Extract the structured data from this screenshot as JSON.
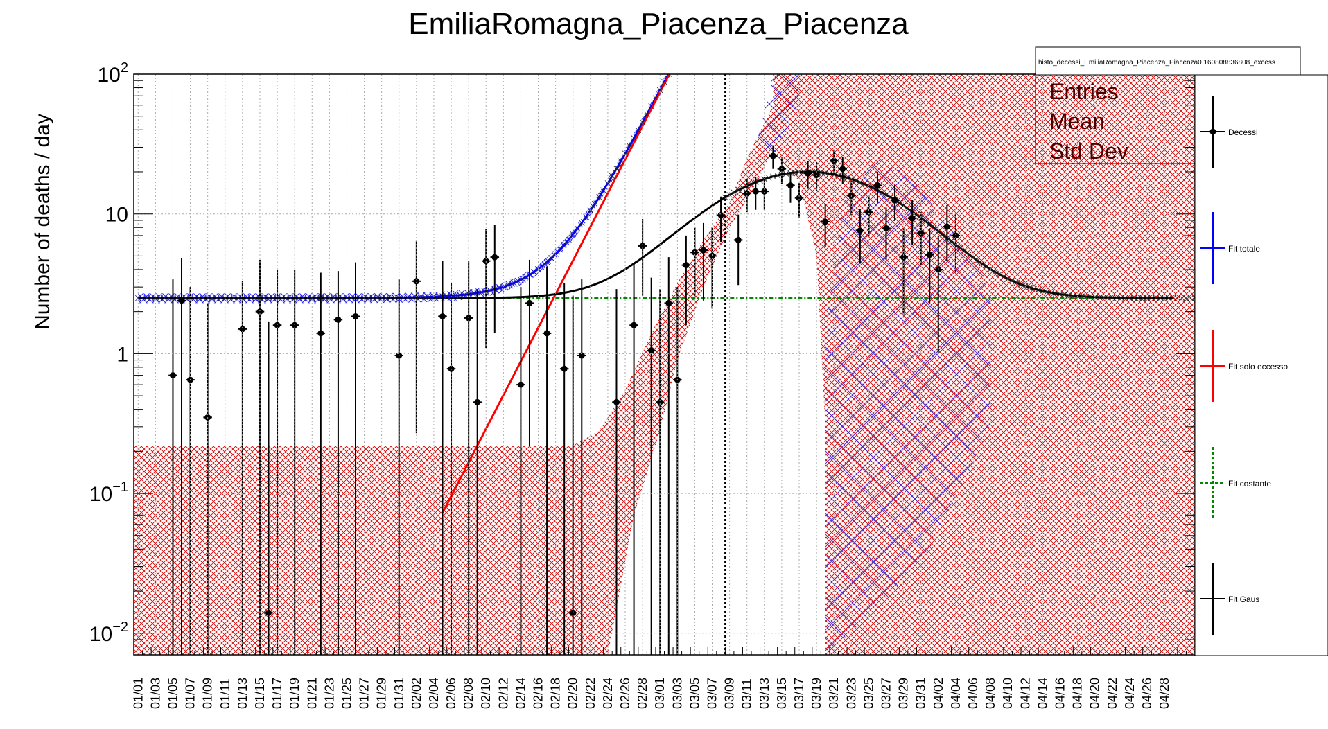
{
  "chart_data": {
    "type": "scatter",
    "title": "EmiliaRomagna_Piacenza_Piacenza",
    "xlabel": "",
    "ylabel": "Number of deaths / day",
    "yscale": "log",
    "ylim": [
      0.007,
      100
    ],
    "y_ticks": [
      {
        "value": 0.01,
        "base": "10",
        "exp": "−2"
      },
      {
        "value": 0.1,
        "base": "10",
        "exp": "−1"
      },
      {
        "value": 1,
        "base": "1",
        "exp": ""
      },
      {
        "value": 10,
        "base": "10",
        "exp": ""
      },
      {
        "value": 100,
        "base": "10",
        "exp": "2"
      }
    ],
    "x_ticks": [
      "01/01",
      "01/03",
      "01/05",
      "01/07",
      "01/09",
      "01/11",
      "01/13",
      "01/15",
      "01/17",
      "01/19",
      "01/21",
      "01/23",
      "01/25",
      "01/27",
      "01/29",
      "01/31",
      "02/02",
      "02/04",
      "02/06",
      "02/08",
      "02/10",
      "02/12",
      "02/14",
      "02/16",
      "02/18",
      "02/20",
      "02/22",
      "02/24",
      "02/26",
      "02/28",
      "03/01",
      "03/03",
      "03/05",
      "03/07",
      "03/09",
      "03/11",
      "03/13",
      "03/15",
      "03/17",
      "03/19",
      "03/21",
      "03/23",
      "03/25",
      "03/27",
      "03/29",
      "03/31",
      "04/02",
      "04/04",
      "04/06",
      "04/08",
      "04/10",
      "04/12",
      "04/14",
      "04/16",
      "04/18",
      "04/20",
      "04/22",
      "04/24",
      "04/26",
      "04/28"
    ],
    "marker_date": "03/08",
    "grid": true,
    "legend_placement": "right",
    "series": [
      {
        "name": "Decessi",
        "color": "#000000",
        "points": [
          {
            "x": "01/05",
            "y": 0.7,
            "lo": 0.007,
            "hi": 3.4
          },
          {
            "x": "01/06",
            "y": 2.4,
            "lo": 0.007,
            "hi": 4.8
          },
          {
            "x": "01/07",
            "y": 0.65,
            "lo": 0.007,
            "hi": 3.0
          },
          {
            "x": "01/09",
            "y": 0.35,
            "lo": 0.007,
            "hi": 2.3
          },
          {
            "x": "01/13",
            "y": 1.5,
            "lo": 0.007,
            "hi": 3.3
          },
          {
            "x": "01/15",
            "y": 2.0,
            "lo": 0.007,
            "hi": 4.7
          },
          {
            "x": "01/16",
            "y": 0.014,
            "lo": 0.007,
            "hi": 1.7
          },
          {
            "x": "01/17",
            "y": 1.6,
            "lo": 0.007,
            "hi": 4.0
          },
          {
            "x": "01/19",
            "y": 1.6,
            "lo": 0.007,
            "hi": 4.0
          },
          {
            "x": "01/22",
            "y": 1.4,
            "lo": 0.007,
            "hi": 3.8
          },
          {
            "x": "01/24",
            "y": 1.75,
            "lo": 0.007,
            "hi": 3.9
          },
          {
            "x": "01/26",
            "y": 1.85,
            "lo": 0.007,
            "hi": 4.5
          },
          {
            "x": "01/31",
            "y": 0.97,
            "lo": 0.007,
            "hi": 3.4
          },
          {
            "x": "02/02",
            "y": 3.3,
            "lo": 0.27,
            "hi": 6.4
          },
          {
            "x": "02/05",
            "y": 1.85,
            "lo": 0.007,
            "hi": 4.6
          },
          {
            "x": "02/06",
            "y": 0.78,
            "lo": 0.007,
            "hi": 3.2
          },
          {
            "x": "02/08",
            "y": 1.8,
            "lo": 0.007,
            "hi": 4.6
          },
          {
            "x": "02/09",
            "y": 0.45,
            "lo": 0.007,
            "hi": 2.9
          },
          {
            "x": "02/10",
            "y": 4.6,
            "lo": 1.1,
            "hi": 7.8
          },
          {
            "x": "02/11",
            "y": 4.9,
            "lo": 1.4,
            "hi": 8.3
          },
          {
            "x": "02/14",
            "y": 0.6,
            "lo": 0.007,
            "hi": 3.0
          },
          {
            "x": "02/15",
            "y": 2.3,
            "lo": 0.22,
            "hi": 4.7
          },
          {
            "x": "02/17",
            "y": 1.4,
            "lo": 0.007,
            "hi": 4.2
          },
          {
            "x": "02/19",
            "y": 0.78,
            "lo": 0.007,
            "hi": 3.2
          },
          {
            "x": "02/20",
            "y": 0.014,
            "lo": 0.007,
            "hi": 2.6
          },
          {
            "x": "02/21",
            "y": 0.97,
            "lo": 0.007,
            "hi": 3.4
          },
          {
            "x": "02/25",
            "y": 0.45,
            "lo": 0.007,
            "hi": 2.9
          },
          {
            "x": "02/27",
            "y": 1.6,
            "lo": 0.007,
            "hi": 4.4
          },
          {
            "x": "02/28",
            "y": 5.9,
            "lo": 2.6,
            "hi": 9.2
          },
          {
            "x": "02/29",
            "y": 1.05,
            "lo": 0.007,
            "hi": 3.5
          },
          {
            "x": "03/01",
            "y": 0.45,
            "lo": 0.007,
            "hi": 2.9
          },
          {
            "x": "03/02",
            "y": 2.3,
            "lo": 0.007,
            "hi": 4.9
          },
          {
            "x": "03/03",
            "y": 0.65,
            "lo": 0.007,
            "hi": 3.0
          },
          {
            "x": "03/04",
            "y": 4.3,
            "lo": 1.6,
            "hi": 7.0
          },
          {
            "x": "03/05",
            "y": 5.3,
            "lo": 2.6,
            "hi": 8.0
          },
          {
            "x": "03/06",
            "y": 5.5,
            "lo": 2.4,
            "hi": 8.6
          },
          {
            "x": "03/07",
            "y": 5.0,
            "lo": 2.1,
            "hi": 8.0
          },
          {
            "x": "03/08",
            "y": 9.8,
            "lo": 6.3,
            "hi": 13.3
          },
          {
            "x": "03/10",
            "y": 6.5,
            "lo": 3.1,
            "hi": 9.9
          },
          {
            "x": "03/11",
            "y": 14.0,
            "lo": 10.3,
            "hi": 17.7
          },
          {
            "x": "03/12",
            "y": 14.5,
            "lo": 10.7,
            "hi": 18.3
          },
          {
            "x": "03/13",
            "y": 14.5,
            "lo": 10.7,
            "hi": 18.3
          },
          {
            "x": "03/14",
            "y": 26.0,
            "lo": 21.0,
            "hi": 31.0
          },
          {
            "x": "03/15",
            "y": 21.0,
            "lo": 16.4,
            "hi": 25.6
          },
          {
            "x": "03/16",
            "y": 16.0,
            "lo": 12.0,
            "hi": 20.0
          },
          {
            "x": "03/17",
            "y": 13.0,
            "lo": 9.4,
            "hi": 16.6
          },
          {
            "x": "03/18",
            "y": 19.5,
            "lo": 15.1,
            "hi": 23.9
          },
          {
            "x": "03/19",
            "y": 19.0,
            "lo": 14.6,
            "hi": 23.4
          },
          {
            "x": "03/20",
            "y": 8.8,
            "lo": 5.8,
            "hi": 11.8
          },
          {
            "x": "03/21",
            "y": 24.0,
            "lo": 19.1,
            "hi": 28.9
          },
          {
            "x": "03/22",
            "y": 21.0,
            "lo": 16.4,
            "hi": 25.6
          },
          {
            "x": "03/23",
            "y": 13.5,
            "lo": 9.8,
            "hi": 17.2
          },
          {
            "x": "03/24",
            "y": 7.6,
            "lo": 4.4,
            "hi": 10.8
          },
          {
            "x": "03/25",
            "y": 10.3,
            "lo": 7.0,
            "hi": 13.6
          },
          {
            "x": "03/26",
            "y": 16.0,
            "lo": 12.0,
            "hi": 20.0
          },
          {
            "x": "03/27",
            "y": 7.9,
            "lo": 4.7,
            "hi": 11.1
          },
          {
            "x": "03/28",
            "y": 12.5,
            "lo": 8.9,
            "hi": 16.1
          },
          {
            "x": "03/29",
            "y": 4.9,
            "lo": 1.9,
            "hi": 7.9
          },
          {
            "x": "03/30",
            "y": 9.3,
            "lo": 6.0,
            "hi": 12.6
          },
          {
            "x": "03/31",
            "y": 7.3,
            "lo": 4.3,
            "hi": 10.3
          },
          {
            "x": "04/01",
            "y": 5.1,
            "lo": 2.3,
            "hi": 7.9
          },
          {
            "x": "04/02",
            "y": 4.0,
            "lo": 1.0,
            "hi": 7.0
          },
          {
            "x": "04/03",
            "y": 8.1,
            "lo": 4.6,
            "hi": 11.6
          },
          {
            "x": "04/04",
            "y": 7.0,
            "lo": 3.8,
            "hi": 10.2
          }
        ]
      },
      {
        "name": "Fit totale",
        "color": "#0000ff",
        "style": "solid",
        "from": "01/01",
        "to": "03/19",
        "base": 2.5,
        "amplitude": 0.055,
        "start": "02/04",
        "doubling_days": 2.5
      },
      {
        "name": "Fit solo eccesso",
        "color": "#ff0000",
        "style": "solid",
        "from": "02/05",
        "to": "03/19",
        "amplitude": 0.055,
        "start": "02/04",
        "doubling_days": 2.5
      },
      {
        "name": "Fit costante",
        "color": "#008800",
        "style": "dashed",
        "from": "01/01",
        "to": "04/29",
        "value": 2.5
      },
      {
        "name": "Fit Gaus",
        "color": "#000000",
        "style": "solid",
        "from": "01/01",
        "to": "04/29",
        "base": 2.5,
        "peak": 17.5,
        "center": "03/18",
        "sigma_days": 9.5
      }
    ],
    "stats_box": {
      "header": "histo_decessi_EmiliaRomagna_Piacenza_Piacenza0.160808836808_excess",
      "rows": [
        "Entries",
        "Mean",
        "Std Dev"
      ]
    },
    "colors": {
      "band_red": "#d40000",
      "band_blue": "#3b22c8",
      "grid": "#999999",
      "stat_text": "#4b0000"
    }
  }
}
